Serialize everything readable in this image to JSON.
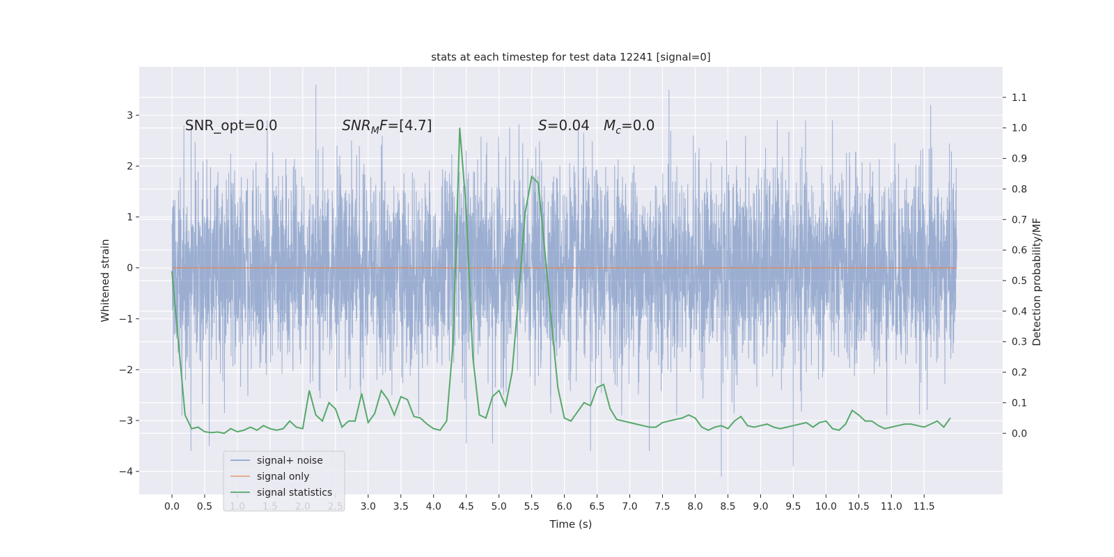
{
  "chart_data": {
    "type": "line",
    "title": "stats at each timestep for test data 12241 [signal=0]",
    "xlabel": "Time (s)",
    "ylabel": "Whitened strain",
    "ylabel_right": "Detection probability/MF",
    "xlim": [
      -0.5,
      12.7
    ],
    "ylim": [
      -4.45,
      3.95
    ],
    "ylim_right": [
      -0.2,
      1.2
    ],
    "x_ticks": [
      0.0,
      0.5,
      1.0,
      1.5,
      2.0,
      2.5,
      3.0,
      3.5,
      4.0,
      4.5,
      5.0,
      5.5,
      6.0,
      6.5,
      7.0,
      7.5,
      8.0,
      8.5,
      9.0,
      9.5,
      10.0,
      10.5,
      11.0,
      11.5
    ],
    "x_tick_labels": [
      "0.0",
      "0.5",
      "1.0",
      "1.5",
      "2.0",
      "2.5",
      "3.0",
      "3.5",
      "4.0",
      "4.5",
      "5.0",
      "5.5",
      "6.0",
      "6.5",
      "7.0",
      "7.5",
      "8.0",
      "8.5",
      "9.0",
      "9.5",
      "10.0",
      "10.5",
      "11.0",
      "11.5"
    ],
    "y_ticks": [
      3,
      2,
      1,
      0,
      -1,
      -2,
      -3,
      -4
    ],
    "y_tick_labels": [
      "3",
      "2",
      "1",
      "0",
      "−1",
      "−2",
      "−3",
      "−4"
    ],
    "y_right_ticks": [
      1.1,
      1.0,
      0.9,
      0.8,
      0.7,
      0.6,
      0.5,
      0.4,
      0.3,
      0.2,
      0.1,
      0.0
    ],
    "y_right_tick_labels": [
      "1.1",
      "1.0",
      "0.9",
      "0.8",
      "0.7",
      "0.6",
      "0.5",
      "0.4",
      "0.3",
      "0.2",
      "0.1",
      "0.0"
    ],
    "grid": true,
    "legend_position": "lower-left",
    "annotations": [
      {
        "text": "SNR_opt=0.0",
        "x": 0.2,
        "y": 2.8
      },
      {
        "text": "SNRₘF=[4.7]",
        "x": 2.6,
        "y": 2.8,
        "parts": [
          {
            "t": "SNR",
            "italic": true
          },
          {
            "t": "M",
            "italic": true,
            "sub": true
          },
          {
            "t": "F",
            "italic": true
          },
          {
            "t": "=[4.7]"
          }
        ]
      },
      {
        "text": "S=0.04",
        "x": 5.6,
        "y": 2.8,
        "parts": [
          {
            "t": "S",
            "italic": true
          },
          {
            "t": "=0.04"
          }
        ]
      },
      {
        "text": "Mᴄ=0.0",
        "x": 6.6,
        "y": 2.8,
        "parts": [
          {
            "t": "M",
            "italic": true
          },
          {
            "t": "c",
            "italic": true,
            "sub": true
          },
          {
            "t": "=0.0"
          }
        ]
      }
    ],
    "series": [
      {
        "name": "signal+ noise",
        "axis": "left",
        "color": "#4c72b0",
        "opacity": 0.5,
        "x_range": [
          0.0,
          12.0
        ],
        "typical_envelope": [
          -1.6,
          1.6
        ],
        "notable_extremes": [
          {
            "x": 0.29,
            "y": -3.6
          },
          {
            "x": 0.57,
            "y": -3.5
          },
          {
            "x": 2.2,
            "y": 3.6
          },
          {
            "x": 4.5,
            "y": -3.45
          },
          {
            "x": 4.9,
            "y": -3.45
          },
          {
            "x": 6.4,
            "y": -3.6
          },
          {
            "x": 7.3,
            "y": -3.6
          },
          {
            "x": 7.6,
            "y": 3.5
          },
          {
            "x": 8.4,
            "y": -4.1
          },
          {
            "x": 9.5,
            "y": -3.9
          },
          {
            "x": 11.6,
            "y": 3.2
          }
        ]
      },
      {
        "name": "signal only",
        "axis": "left",
        "color": "#dd8452",
        "x": [
          0.0,
          12.0
        ],
        "y": [
          0.0,
          0.0
        ]
      },
      {
        "name": "signal statistics",
        "axis": "right",
        "color": "#55a868",
        "x": [
          0.0,
          0.12,
          0.2,
          0.3,
          0.4,
          0.5,
          0.6,
          0.7,
          0.8,
          0.9,
          1.0,
          1.1,
          1.2,
          1.3,
          1.4,
          1.5,
          1.6,
          1.7,
          1.8,
          1.9,
          2.0,
          2.1,
          2.2,
          2.3,
          2.4,
          2.5,
          2.6,
          2.7,
          2.8,
          2.9,
          3.0,
          3.1,
          3.2,
          3.3,
          3.4,
          3.5,
          3.6,
          3.7,
          3.8,
          3.9,
          4.0,
          4.1,
          4.2,
          4.3,
          4.4,
          4.5,
          4.6,
          4.7,
          4.8,
          4.9,
          5.0,
          5.1,
          5.2,
          5.3,
          5.4,
          5.5,
          5.6,
          5.7,
          5.8,
          5.9,
          6.0,
          6.1,
          6.2,
          6.3,
          6.4,
          6.5,
          6.6,
          6.7,
          6.8,
          6.9,
          7.0,
          7.1,
          7.2,
          7.3,
          7.4,
          7.5,
          7.6,
          7.7,
          7.8,
          7.9,
          8.0,
          8.1,
          8.2,
          8.3,
          8.4,
          8.5,
          8.6,
          8.7,
          8.8,
          8.9,
          9.0,
          9.1,
          9.2,
          9.3,
          9.4,
          9.5,
          9.6,
          9.7,
          9.8,
          9.9,
          10.0,
          10.1,
          10.2,
          10.3,
          10.4,
          10.5,
          10.6,
          10.7,
          10.8,
          10.9,
          11.0,
          11.1,
          11.2,
          11.3,
          11.4,
          11.5,
          11.6,
          11.7,
          11.8,
          11.9
        ],
        "y": [
          0.53,
          0.25,
          0.06,
          0.015,
          0.02,
          0.005,
          0.002,
          0.004,
          0.0,
          0.015,
          0.005,
          0.01,
          0.02,
          0.01,
          0.025,
          0.015,
          0.01,
          0.015,
          0.04,
          0.02,
          0.015,
          0.14,
          0.06,
          0.04,
          0.1,
          0.08,
          0.02,
          0.04,
          0.04,
          0.13,
          0.035,
          0.065,
          0.14,
          0.11,
          0.06,
          0.12,
          0.11,
          0.055,
          0.05,
          0.03,
          0.015,
          0.01,
          0.04,
          0.3,
          1.0,
          0.73,
          0.25,
          0.06,
          0.05,
          0.12,
          0.14,
          0.09,
          0.2,
          0.45,
          0.72,
          0.84,
          0.82,
          0.6,
          0.37,
          0.15,
          0.05,
          0.04,
          0.07,
          0.1,
          0.09,
          0.15,
          0.16,
          0.08,
          0.045,
          0.04,
          0.035,
          0.03,
          0.025,
          0.02,
          0.02,
          0.035,
          0.04,
          0.045,
          0.05,
          0.06,
          0.05,
          0.02,
          0.01,
          0.02,
          0.025,
          0.015,
          0.04,
          0.055,
          0.025,
          0.02,
          0.025,
          0.03,
          0.02,
          0.015,
          0.02,
          0.025,
          0.03,
          0.035,
          0.02,
          0.035,
          0.04,
          0.015,
          0.01,
          0.03,
          0.075,
          0.06,
          0.04,
          0.04,
          0.025,
          0.015,
          0.02,
          0.025,
          0.03,
          0.03,
          0.025,
          0.02,
          0.03,
          0.04,
          0.02,
          0.05
        ]
      }
    ]
  }
}
